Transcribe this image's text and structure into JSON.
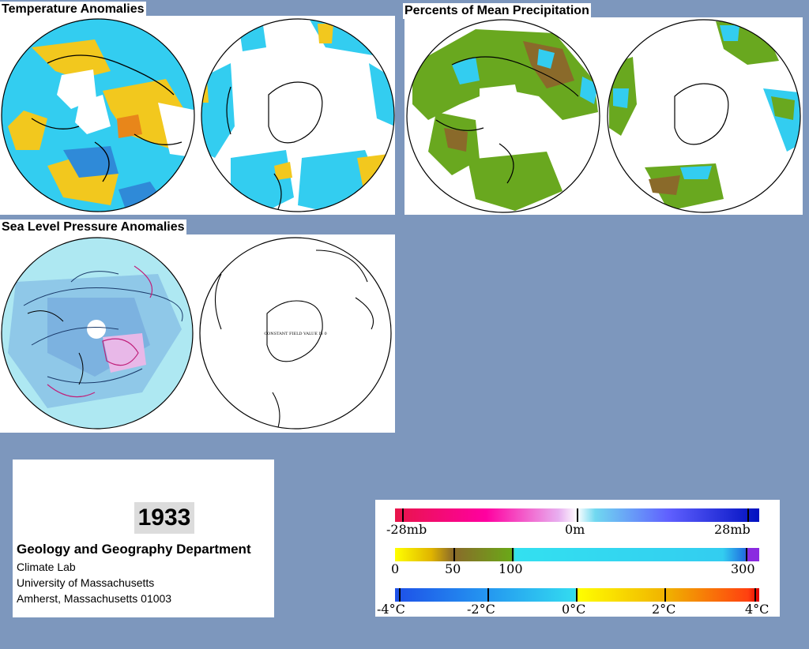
{
  "panels": {
    "temperature": {
      "title": "Temperature Anomalies"
    },
    "precipitation": {
      "title": "Percents of Mean Precipitation"
    },
    "pressure": {
      "title": "Sea Level Pressure Anomalies",
      "south_note": "CONSTANT FIELD  VALUE IS 0"
    }
  },
  "info": {
    "year": "1933",
    "department": "Geology and Geography Department",
    "lines": [
      "Climate Lab",
      "University of Massachusetts",
      "Amherst, Massachusetts 01003"
    ]
  },
  "legend": {
    "pressure_scale": {
      "min_label": "-28mb",
      "mid_label": "0m",
      "max_label": "28mb"
    },
    "precip_scale": {
      "labels": [
        "0",
        "50",
        "100",
        "300"
      ]
    },
    "temp_scale": {
      "labels": [
        "-4°C",
        "-2°C",
        "0°C",
        "2°C",
        "4°C"
      ]
    }
  },
  "colors": {
    "page_background": "#7d97bd",
    "ocean_cyan": "#33cdf0",
    "warm_yellow": "#f2c81e",
    "cool_blue": "#2f8ad8",
    "precip_green": "#69a81f",
    "precip_brown": "#8a6a2a",
    "slp_light": "#aee8f2",
    "slp_mid": "#8fc8e8"
  }
}
